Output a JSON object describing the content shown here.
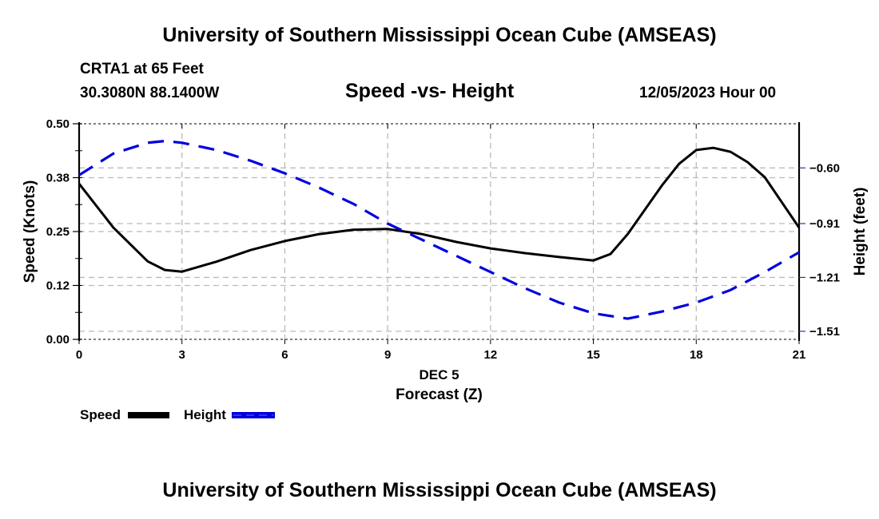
{
  "header": {
    "title": "University of Southern Mississippi Ocean Cube (AMSEAS)",
    "station": "CRTA1 at 65 Feet",
    "coordinates": "30.3080N  88.1400W",
    "plot_title": "Speed -vs- Height",
    "datetime": "12/05/2023 Hour 00"
  },
  "footer": {
    "title": "University of Southern Mississippi Ocean Cube (AMSEAS)"
  },
  "legend": {
    "speed_label": "Speed",
    "height_label": "Height"
  },
  "colors": {
    "speed": "#000000",
    "height": "#0000dd",
    "grid": "#bbbbbb"
  },
  "chart_data": {
    "type": "line",
    "title": "Speed -vs- Height",
    "xlabel": "Forecast (Z)",
    "xsublabel": "DEC 5",
    "ylabel": "Speed (Knots)",
    "y2label": "Height (feet)",
    "xlim": [
      0,
      21
    ],
    "ylim": [
      0,
      0.5
    ],
    "y2lim": [
      -1.555,
      -0.354
    ],
    "x_ticks": [
      0,
      3,
      6,
      9,
      12,
      15,
      18,
      21
    ],
    "x_tick_labels": [
      "0",
      "3",
      "6",
      "9",
      "12",
      "15",
      "18",
      "21"
    ],
    "y_ticks": [
      0.0,
      0.125,
      0.25,
      0.375,
      0.5
    ],
    "y_tick_labels": [
      "0.00",
      "0.12",
      "0.25",
      "0.38",
      "0.50"
    ],
    "y2_ticks": [
      -0.6,
      -0.91,
      -1.21,
      -1.51
    ],
    "y2_tick_labels": [
      "−0.60",
      "−0.91",
      "−1.21",
      "−1.51"
    ],
    "grid": true,
    "legend_position": "bottom-left",
    "series": [
      {
        "name": "Speed",
        "axis": "left",
        "style": "solid",
        "x": [
          0,
          1,
          2,
          2.5,
          3,
          4,
          5,
          6,
          7,
          8,
          9,
          10,
          11,
          12,
          13,
          14,
          15,
          15.5,
          16,
          17,
          17.5,
          18,
          18.5,
          19,
          19.5,
          20,
          21
        ],
        "values": [
          0.361,
          0.259,
          0.181,
          0.161,
          0.157,
          0.18,
          0.207,
          0.228,
          0.244,
          0.254,
          0.256,
          0.244,
          0.226,
          0.211,
          0.2,
          0.191,
          0.183,
          0.198,
          0.244,
          0.357,
          0.407,
          0.439,
          0.444,
          0.435,
          0.411,
          0.376,
          0.259
        ]
      },
      {
        "name": "Height",
        "axis": "right",
        "style": "dashed",
        "x": [
          0,
          1,
          2,
          2.5,
          3,
          4,
          5,
          6,
          7,
          8,
          9,
          10,
          11,
          12,
          13,
          14,
          15,
          16,
          17,
          18,
          19,
          20,
          21
        ],
        "values": [
          -0.64,
          -0.52,
          -0.46,
          -0.45,
          -0.46,
          -0.5,
          -0.56,
          -0.63,
          -0.71,
          -0.8,
          -0.91,
          -1.0,
          -1.09,
          -1.18,
          -1.27,
          -1.35,
          -1.41,
          -1.44,
          -1.4,
          -1.35,
          -1.28,
          -1.18,
          -1.07
        ]
      }
    ]
  }
}
